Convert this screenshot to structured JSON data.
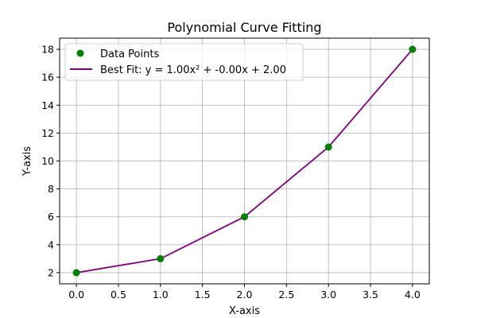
{
  "chart_data": {
    "type": "scatter",
    "title": "Polynomial Curve Fitting",
    "xlabel": "X-axis",
    "ylabel": "Y-axis",
    "xlim": [
      -0.2,
      4.2
    ],
    "ylim": [
      1.2,
      18.8
    ],
    "xticks": [
      0.0,
      0.5,
      1.0,
      1.5,
      2.0,
      2.5,
      3.0,
      3.5,
      4.0
    ],
    "xtick_labels": [
      "0.0",
      "0.5",
      "1.0",
      "1.5",
      "2.0",
      "2.5",
      "3.0",
      "3.5",
      "4.0"
    ],
    "yticks": [
      2,
      4,
      6,
      8,
      10,
      12,
      14,
      16,
      18
    ],
    "ytick_labels": [
      "2",
      "4",
      "6",
      "8",
      "10",
      "12",
      "14",
      "16",
      "18"
    ],
    "grid": true,
    "legend_position": "top-left",
    "series": [
      {
        "name": "Data Points",
        "kind": "scatter",
        "color": "#008000",
        "x": [
          0,
          1,
          2,
          3,
          4
        ],
        "y": [
          2,
          3,
          6,
          11,
          18
        ]
      },
      {
        "name": "Best Fit: y = 1.00x² + -0.00x + 2.00",
        "kind": "line",
        "color": "#800080",
        "x": [
          0,
          1,
          2,
          3,
          4
        ],
        "y": [
          2,
          3,
          6,
          11,
          18
        ]
      }
    ]
  }
}
